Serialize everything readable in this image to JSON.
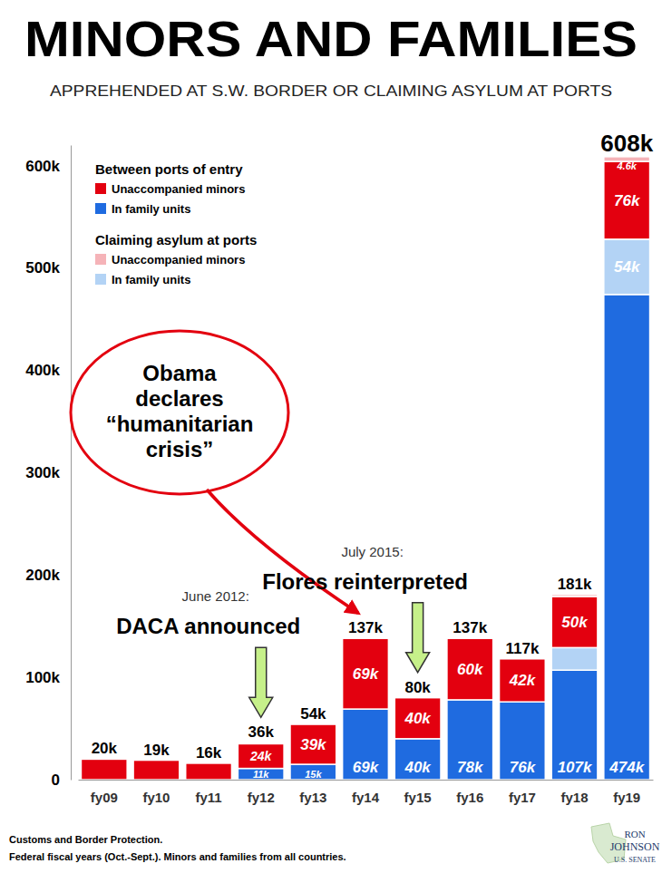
{
  "chart_data": {
    "type": "bar",
    "title": "MINORS AND FAMILIES",
    "subtitle": "APPREHENDED AT S.W. BORDER OR CLAIMING ASYLUM AT PORTS",
    "stacked": true,
    "data_labels": true,
    "legend": "top-left",
    "legend_groups": [
      "Between ports of entry",
      "Claiming asylum at ports"
    ],
    "categories": [
      "fy09",
      "fy10",
      "fy11",
      "fy12",
      "fy13",
      "fy14",
      "fy15",
      "fy16",
      "fy17",
      "fy18",
      "fy19"
    ],
    "series": [
      {
        "name": "Unaccompanied minors",
        "color": "#e3000f",
        "values": [
          20,
          19,
          16,
          24,
          39,
          69,
          40,
          60,
          42,
          50,
          76
        ],
        "value_labels": [
          null,
          null,
          null,
          "24k",
          "39k",
          "69k",
          "40k",
          "60k",
          "42k",
          "50k",
          "76k"
        ]
      },
      {
        "name": "In family units",
        "color": "#1f6be0",
        "values": [
          null,
          null,
          null,
          11,
          15,
          69,
          40,
          78,
          76,
          107,
          474
        ],
        "value_labels": [
          null,
          null,
          null,
          "11k",
          "15k",
          "69k",
          "40k",
          "78k",
          "76k",
          "107k",
          "474k"
        ]
      },
      {
        "name": "Unaccompanied minors",
        "color": "#f5b3b8",
        "values": [
          null,
          null,
          null,
          null,
          null,
          null,
          null,
          null,
          null,
          2,
          4.6
        ],
        "value_labels": [
          null,
          null,
          null,
          null,
          null,
          null,
          null,
          null,
          null,
          null,
          "4.6k"
        ]
      },
      {
        "name": "In family units",
        "color": "#b3d3f5",
        "values": [
          null,
          null,
          null,
          null,
          null,
          null,
          null,
          null,
          null,
          22,
          54
        ],
        "value_labels": [
          null,
          null,
          null,
          null,
          null,
          null,
          null,
          null,
          null,
          null,
          "54k"
        ]
      }
    ],
    "totals": {
      "values": [
        20,
        19,
        16,
        36,
        54,
        137,
        80,
        137,
        117,
        181,
        608
      ],
      "value_labels": [
        "20k",
        "19k",
        "16k",
        "36k",
        "54k",
        "137k",
        "80k",
        "137k",
        "117k",
        "181k",
        "608k"
      ]
    },
    "ylim": [
      0,
      620
    ],
    "yticks": [
      0,
      {
        "value": 100,
        "label": "100k"
      },
      {
        "value": 200,
        "label": "200k"
      },
      {
        "value": 300,
        "label": "300k"
      },
      {
        "value": 400,
        "label": "400k"
      },
      {
        "value": 500,
        "label": "500k"
      },
      {
        "value": 600,
        "label": "600k"
      }
    ],
    "grid": false,
    "annotations": [
      {
        "lines": [
          "Obama",
          "declares",
          "“humanitarian",
          "crisis”"
        ],
        "x": "fy14"
      },
      {
        "date": "June 2012:",
        "text": "DACA announced",
        "x": "fy12"
      },
      {
        "date": "July 2015:",
        "text": "Flores reinterpreted",
        "x": "fy15"
      }
    ],
    "notes": [
      "Customs and Border Protection.",
      "Federal fiscal years (Oct.-Sept.). Minors and families from all countries."
    ],
    "logo": [
      "RON",
      "JOHNSON",
      "U.S. SENATE"
    ]
  }
}
